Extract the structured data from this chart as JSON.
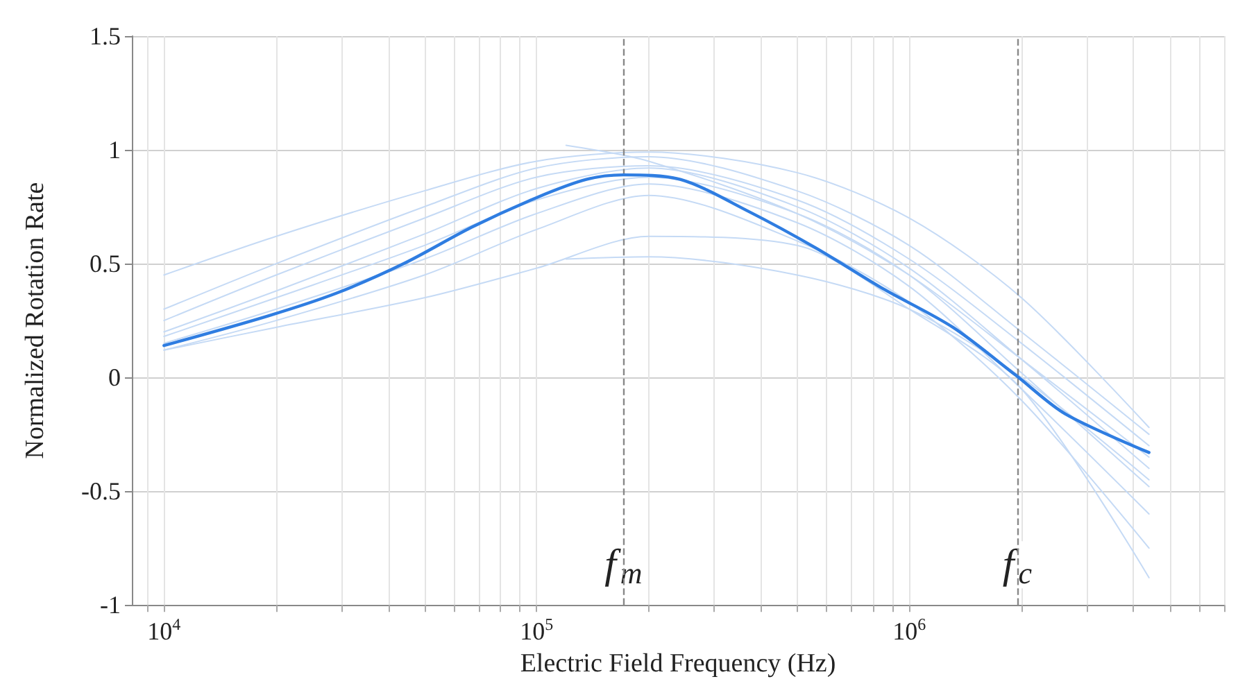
{
  "chart_data": {
    "type": "line",
    "xlabel": "Electric Field Frequency (Hz)",
    "ylabel": "Normalized Rotation Rate",
    "log": "x",
    "grid": true,
    "marker": "none",
    "line_style": "solid",
    "x": [
      10000,
      20000,
      50000,
      100000,
      200000,
      500000,
      1000000,
      2000000,
      4400000
    ],
    "xlim": [
      8200,
      7000000
    ],
    "xticks": [
      {
        "value": 10000,
        "label": "10$^{4}$"
      },
      {
        "value": 100000,
        "label": "10$^{5}$"
      },
      {
        "value": 1000000,
        "label": "10$^{6}$"
      }
    ],
    "ylim": [
      -1,
      1.5
    ],
    "yticks": [
      -1,
      -0.5,
      0,
      0.5,
      1,
      1.5
    ],
    "series": [
      {
        "color": "#c5daf5",
        "values": [
          0.45,
          0.62,
          0.82,
          0.95,
          0.99,
          0.9,
          0.7,
          0.35,
          -0.22
        ]
      },
      {
        "color": "#c5daf5",
        "values": [
          0.3,
          0.5,
          0.75,
          0.92,
          0.97,
          0.82,
          0.58,
          0.2,
          -0.25
        ]
      },
      {
        "color": "#c5daf5",
        "values": [
          0.25,
          0.45,
          0.7,
          0.88,
          0.93,
          0.78,
          0.52,
          0.15,
          -0.3
        ]
      },
      {
        "color": "#c5daf5",
        "values": [
          0.2,
          0.38,
          0.63,
          0.83,
          0.92,
          0.75,
          0.48,
          0.08,
          -0.4
        ]
      },
      {
        "color": "#c5daf5",
        "values": [
          0.18,
          0.35,
          0.58,
          0.78,
          0.88,
          0.72,
          0.45,
          0.02,
          -0.48
        ]
      },
      {
        "color": "#c5daf5",
        "values": [
          0.15,
          0.3,
          0.52,
          0.72,
          0.85,
          0.68,
          0.4,
          -0.05,
          -0.6
        ]
      },
      {
        "color": "#c5daf5",
        "values": [
          0.12,
          0.25,
          0.45,
          0.65,
          0.8,
          0.6,
          0.33,
          -0.1,
          -0.75
        ]
      },
      {
        "color": "#c5daf5",
        "values": [
          0.12,
          0.22,
          0.35,
          0.48,
          0.62,
          0.58,
          0.3,
          -0.05,
          -0.88
        ]
      },
      {
        "color": "#c5daf5",
        "x": [
          120000,
          200000,
          500000,
          1000000,
          2000000,
          4400000
        ],
        "values": [
          1.02,
          0.95,
          0.72,
          0.45,
          0.08,
          -0.35
        ]
      },
      {
        "color": "#c5daf5",
        "x": [
          120000,
          200000,
          500000,
          1000000,
          2000000,
          4400000
        ],
        "values": [
          0.52,
          0.53,
          0.45,
          0.3,
          0.0,
          -0.45
        ]
      },
      {
        "color": "#2f7de1",
        "x": [
          10000,
          19000,
          29000,
          44000,
          67000,
          100000,
          136000,
          171000,
          243000,
          370000,
          560000,
          850000,
          1310000,
          1930000,
          2620000,
          4400000
        ],
        "values": [
          0.14,
          0.27,
          0.37,
          0.5,
          0.66,
          0.79,
          0.87,
          0.89,
          0.87,
          0.73,
          0.57,
          0.39,
          0.22,
          0.01,
          -0.16,
          -0.33
        ]
      }
    ],
    "ref_lines": [
      {
        "axis": "x",
        "value": 171000,
        "label": "f$_{m}$",
        "color": "#888888",
        "line_style": "dashed"
      },
      {
        "axis": "x",
        "value": 1950000,
        "label": "f$_{c}$",
        "color": "#888888",
        "line_style": "dashed"
      }
    ]
  }
}
